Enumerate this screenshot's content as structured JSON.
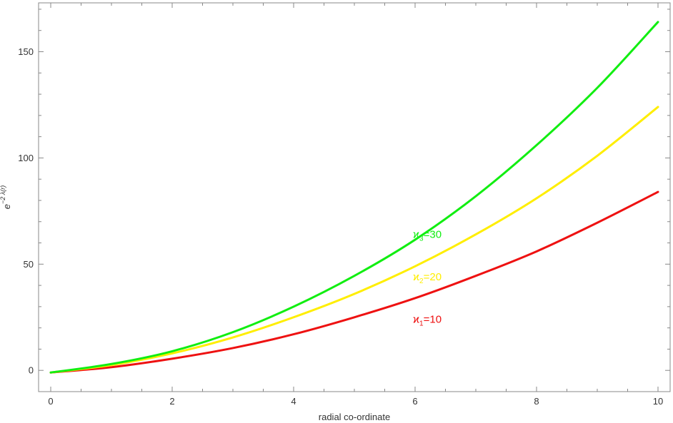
{
  "chart_data": {
    "type": "line",
    "xlabel": "radial co-ordinate",
    "ylabel": {
      "base": "e",
      "exponent": "−2 λ(r)"
    },
    "xlim": [
      -0.2,
      10.2
    ],
    "ylim": [
      -10,
      173
    ],
    "xticks": [
      0,
      2,
      4,
      6,
      8,
      10
    ],
    "yticks": [
      0,
      50,
      100,
      150
    ],
    "grid": false,
    "series": [
      {
        "name": "ϰ1=10",
        "label": {
          "symbol": "ϰ",
          "sub": "1",
          "rest": "=10",
          "at": [
            6.0,
            24
          ]
        },
        "color": "#ee1111",
        "x": [
          0,
          1,
          2,
          3,
          4,
          5,
          6,
          7,
          8,
          9,
          10
        ],
        "values": [
          -1,
          1.5,
          5.5,
          10.5,
          17,
          25,
          34,
          44.5,
          56,
          69.5,
          84
        ]
      },
      {
        "name": "ϰ2=20",
        "label": {
          "symbol": "ϰ",
          "sub": "2",
          "rest": "=20",
          "at": [
            6.0,
            44
          ]
        },
        "color": "#ffee00",
        "x": [
          0,
          1,
          2,
          3,
          4,
          5,
          6,
          7,
          8,
          9,
          10
        ],
        "values": [
          -1,
          2.5,
          8,
          15.5,
          25,
          36,
          49,
          64,
          81,
          101,
          124
        ]
      },
      {
        "name": "ϰ3=30",
        "label": {
          "symbol": "ϰ",
          "sub": "3",
          "rest": "=30",
          "at": [
            6.0,
            64
          ]
        },
        "color": "#11ee11",
        "x": [
          0,
          1,
          2,
          3,
          4,
          5,
          6,
          7,
          8,
          9,
          10
        ],
        "values": [
          -1,
          3,
          9,
          18,
          30,
          44.5,
          61.5,
          82,
          106,
          133,
          164
        ]
      }
    ]
  }
}
